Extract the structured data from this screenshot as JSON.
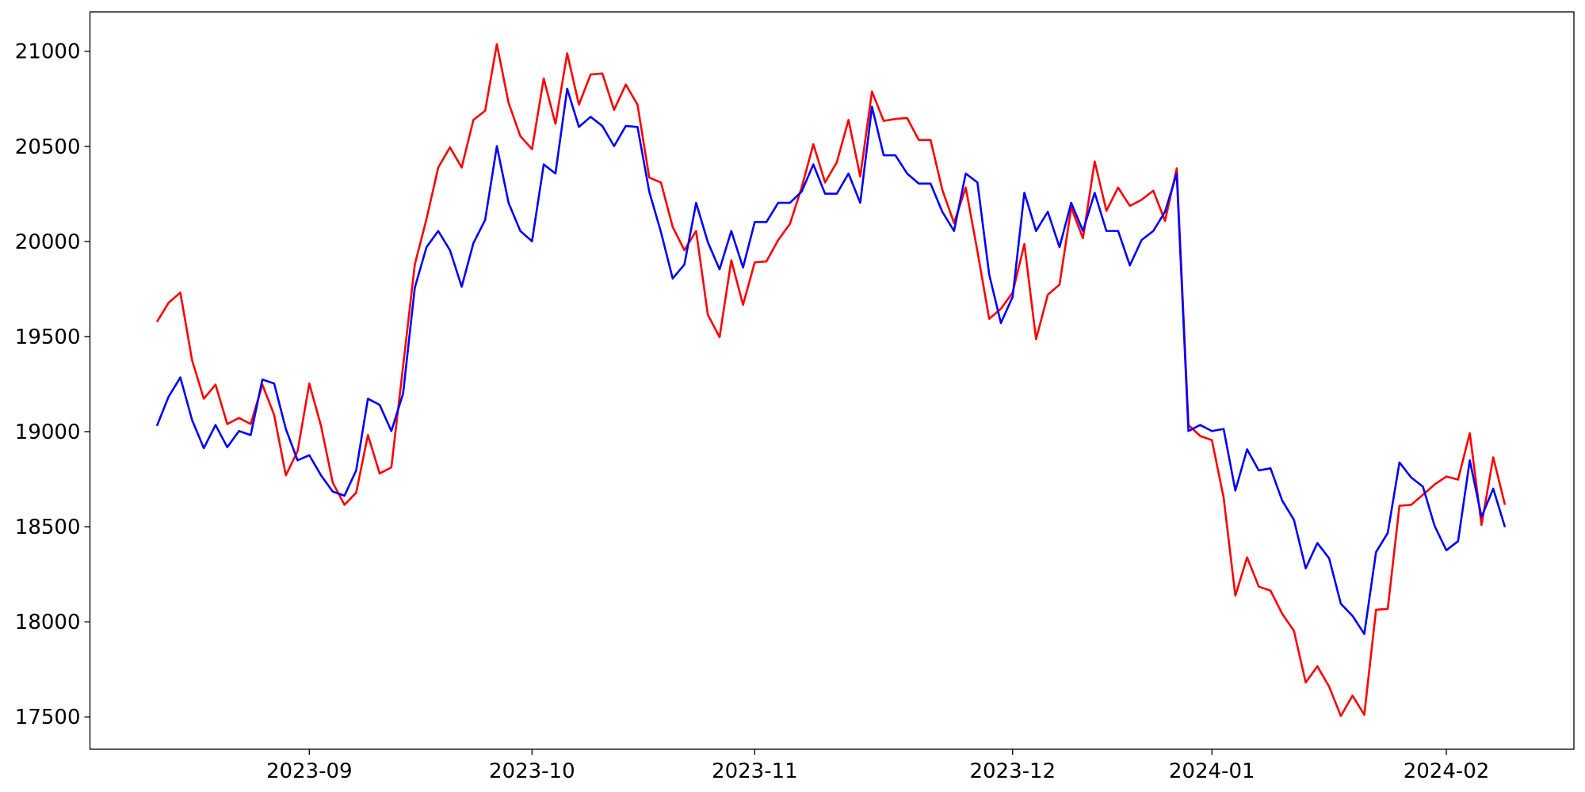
{
  "chart_data": {
    "type": "line",
    "categories": [
      null,
      null,
      null,
      null,
      null,
      null,
      null,
      null,
      null,
      null,
      null,
      null,
      null,
      "2023-09",
      null,
      null,
      null,
      null,
      null,
      null,
      null,
      null,
      null,
      null,
      null,
      null,
      null,
      null,
      null,
      null,
      null,
      null,
      "2023-10",
      null,
      null,
      null,
      null,
      null,
      null,
      null,
      null,
      null,
      null,
      null,
      null,
      null,
      null,
      null,
      null,
      null,
      null,
      "2023-11",
      null,
      null,
      null,
      null,
      null,
      null,
      null,
      null,
      null,
      null,
      null,
      null,
      null,
      null,
      null,
      null,
      null,
      null,
      null,
      null,
      null,
      "2023-12",
      null,
      null,
      null,
      null,
      null,
      null,
      null,
      null,
      null,
      null,
      null,
      null,
      null,
      null,
      null,
      null,
      "2024-01",
      null,
      null,
      null,
      null,
      null,
      null,
      null,
      null,
      null,
      null,
      null,
      null,
      null,
      null,
      null,
      null,
      null,
      null,
      null,
      "2024-02",
      null,
      null,
      null,
      null,
      null
    ],
    "series": [
      {
        "color": "#ff0000",
        "values": [
          19577,
          19678,
          19731,
          19375,
          19173,
          19247,
          19040,
          19072,
          19040,
          19247,
          19088,
          18770,
          18897,
          19253,
          19030,
          18732,
          18615,
          18679,
          18982,
          18780,
          18812,
          19343,
          19879,
          20118,
          20389,
          20495,
          20389,
          20639,
          20687,
          21037,
          20729,
          20554,
          20485,
          20857,
          20618,
          20989,
          20719,
          20878,
          20883,
          20692,
          20825,
          20719,
          20336,
          20310,
          20076,
          19954,
          20055,
          19614,
          19497,
          19901,
          19667,
          19890,
          19895,
          20007,
          20092,
          20283,
          20511,
          20310,
          20416,
          20639,
          20341,
          20788,
          20634,
          20644,
          20649,
          20533,
          20533,
          20272,
          20097,
          20283,
          19948,
          19593,
          19646,
          19731,
          19986,
          19486,
          19720,
          19773,
          20177,
          20017,
          20421,
          20161,
          20283,
          20187,
          20219,
          20267,
          20108,
          20384,
          19035,
          18977,
          18955,
          18653,
          18137,
          18339,
          18185,
          18164,
          18042,
          17952,
          17681,
          17766,
          17659,
          17505,
          17612,
          17511,
          18063,
          18068,
          18610,
          18615,
          18668,
          18722,
          18764,
          18748,
          18992,
          18509,
          18865,
          18615
        ]
      },
      {
        "color": "#0000ff",
        "values": [
          19030,
          19184,
          19285,
          19061,
          18913,
          19035,
          18918,
          19003,
          18982,
          19274,
          19253,
          19014,
          18849,
          18876,
          18770,
          18685,
          18663,
          18796,
          19173,
          19141,
          19003,
          19200,
          19757,
          19970,
          20055,
          19954,
          19762,
          19991,
          20113,
          20501,
          20203,
          20055,
          20001,
          20405,
          20357,
          20803,
          20602,
          20655,
          20607,
          20501,
          20607,
          20602,
          20262,
          20049,
          19805,
          19879,
          20203,
          19996,
          19853,
          20055,
          19863,
          20102,
          20102,
          20203,
          20203,
          20262,
          20405,
          20251,
          20251,
          20357,
          20203,
          20708,
          20453,
          20453,
          20357,
          20304,
          20304,
          20156,
          20055,
          20357,
          20310,
          19826,
          19571,
          19709,
          20256,
          20055,
          20156,
          19970,
          20203,
          20055,
          20256,
          20055,
          20055,
          19874,
          20007,
          20055,
          20156,
          20357,
          19003,
          19035,
          19003,
          19014,
          18690,
          18907,
          18796,
          18807,
          18637,
          18536,
          18281,
          18414,
          18334,
          18095,
          18031,
          17936,
          18366,
          18467,
          18838,
          18759,
          18711,
          18504,
          18376,
          18424,
          18849,
          18552,
          18700,
          18498
        ]
      }
    ],
    "ylim": [
      17330,
      21207
    ],
    "yticks": [
      17500,
      18000,
      18500,
      19000,
      19500,
      20000,
      20500,
      21000
    ],
    "grid": false
  }
}
